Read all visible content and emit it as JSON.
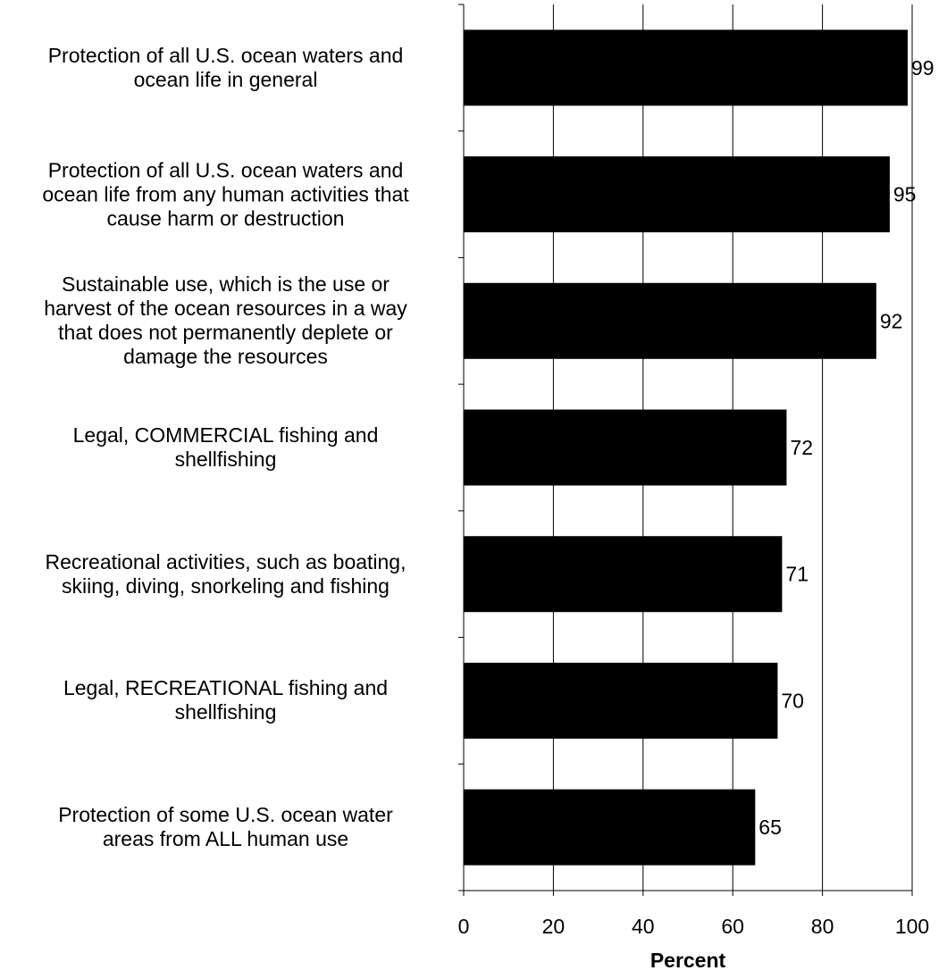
{
  "chart_data": {
    "type": "bar",
    "orientation": "horizontal",
    "categories": [
      [
        "Protection of all U.S. ocean waters and",
        "ocean life in general"
      ],
      [
        "Protection of all U.S. ocean waters and",
        "ocean life from any human activities that",
        "cause harm or destruction"
      ],
      [
        "Sustainable use, which is the use or",
        "harvest of the ocean resources in a way",
        "that does not permanently deplete or",
        "damage the resources"
      ],
      [
        "Legal, COMMERCIAL fishing and",
        "shellfishing"
      ],
      [
        "Recreational activities, such as boating,",
        "skiing, diving, snorkeling and fishing"
      ],
      [
        "Legal, RECREATIONAL fishing and",
        "shellfishing"
      ],
      [
        "Protection of some U.S. ocean water",
        "areas from ALL human use"
      ]
    ],
    "values": [
      99,
      95,
      92,
      72,
      71,
      70,
      65
    ],
    "xlabel": "Percent",
    "ylabel": "",
    "title": "",
    "xlim": [
      0,
      100
    ],
    "xticks": [
      "0",
      "20",
      "40",
      "60",
      "80",
      "100"
    ],
    "grid": "vertical",
    "bar_color": "#000000"
  }
}
